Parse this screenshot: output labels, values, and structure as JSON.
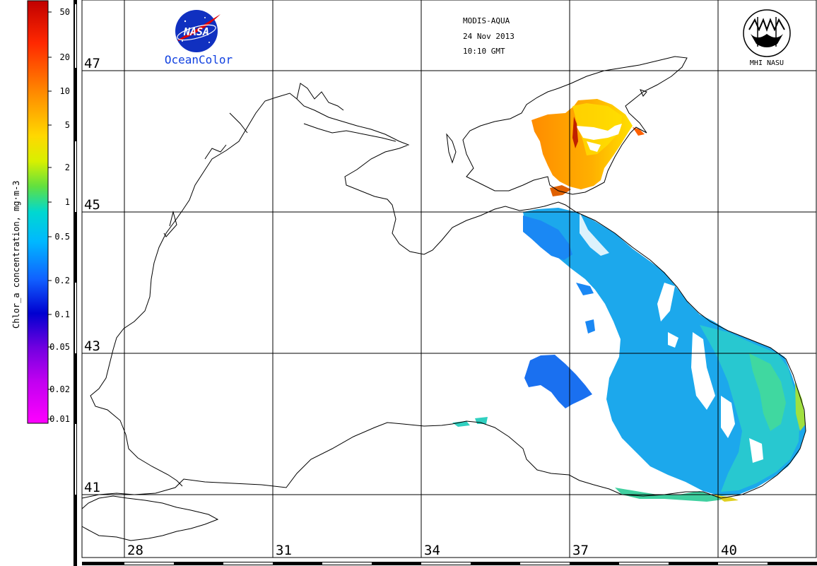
{
  "header": {
    "sensor": "MODIS-AQUA",
    "date": "24 Nov 2013",
    "time": "10:10 GMT"
  },
  "logos": {
    "nasa_text": "NASA",
    "oceancolor_text": "OceanColor",
    "mhi_text": "MHI NASU"
  },
  "colorbar": {
    "title": "Chlor_a concentration, mg·m-3",
    "ticks": [
      "50",
      "20",
      "10",
      "5",
      "2",
      "1",
      "0.5",
      "0.2",
      "0.1",
      "0.05",
      "0.02",
      "0.01"
    ],
    "colors": [
      "#c00000",
      "#ff3000",
      "#ff8c00",
      "#ffe000",
      "#a0e000",
      "#20d8a0",
      "#00c8ff",
      "#2080ff",
      "#0000e0",
      "#8000e0",
      "#ff00ff"
    ]
  },
  "map": {
    "latitudes": [
      "47",
      "45",
      "43",
      "41"
    ],
    "longitudes": [
      "28",
      "31",
      "34",
      "37",
      "40"
    ],
    "coast_color": "#000000",
    "grid_color": "#000000"
  }
}
